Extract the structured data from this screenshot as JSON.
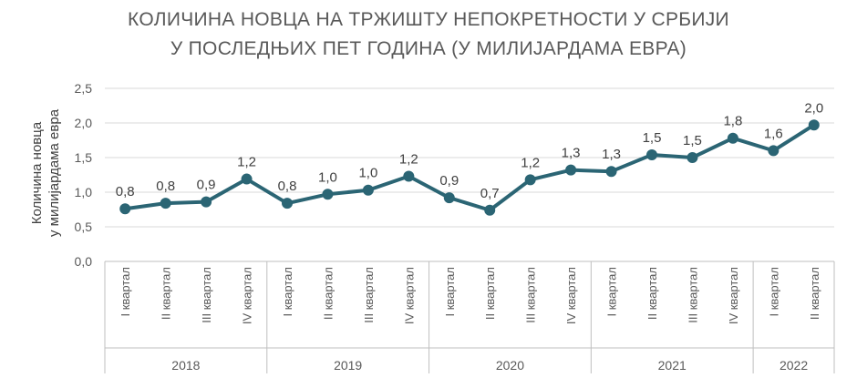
{
  "chart_data": {
    "type": "line",
    "title": [
      "КОЛИЧИНА НОВЦА НА ТРЖИШТУ НЕПОКРЕТНОСТИ У СРБИЈИ",
      "У ПОСЛЕДЊИХ ПЕТ ГОДИНА (У МИЛИЈАРДАМА ЕВРА)"
    ],
    "ylabel": [
      "Количина новца",
      "у милијардама евра"
    ],
    "ylim": [
      0,
      2.5
    ],
    "yticks": [
      "0,0",
      "0,5",
      "1,0",
      "1,5",
      "2,0",
      "2,5"
    ],
    "ytick_values": [
      0,
      0.5,
      1.0,
      1.5,
      2.0,
      2.5
    ],
    "grid": true,
    "categories": [
      "I квартал",
      "II квартал",
      "III квартал",
      "IV квартал",
      "I квартал",
      "II квартал",
      "III квартал",
      "IV квартал",
      "I квартал",
      "II квартал",
      "III квартал",
      "IV квартал",
      "I квартал",
      "II квартал",
      "III квартал",
      "IV квартал",
      "I квартал",
      "II квартал"
    ],
    "groups": [
      {
        "label": "2018",
        "count": 4
      },
      {
        "label": "2019",
        "count": 4
      },
      {
        "label": "2020",
        "count": 4
      },
      {
        "label": "2021",
        "count": 4
      },
      {
        "label": "2022",
        "count": 2
      }
    ],
    "series": [
      {
        "name": "Количина новца",
        "color": "#2b6574",
        "values": [
          0.76,
          0.84,
          0.86,
          1.19,
          0.84,
          0.97,
          1.03,
          1.23,
          0.92,
          0.74,
          1.18,
          1.32,
          1.3,
          1.54,
          1.5,
          1.78,
          1.6,
          1.97
        ],
        "labels": [
          "0,8",
          "0,8",
          "0,9",
          "1,2",
          "0,8",
          "1,0",
          "1,0",
          "1,2",
          "0,9",
          "0,7",
          "1,2",
          "1,3",
          "1,3",
          "1,5",
          "1,5",
          "1,8",
          "1,6",
          "2,0"
        ]
      }
    ]
  }
}
